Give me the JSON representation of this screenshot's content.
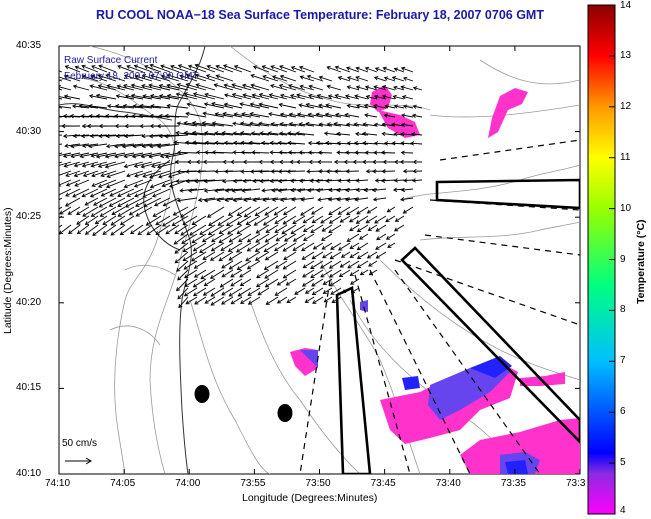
{
  "header": {
    "title": "RU COOL  NOAA−18  Sea Surface Temperature:  February 18, 2007 0706 GMT"
  },
  "legend": {
    "line1": "Raw Surface Current",
    "line2": "February 18, 2007 07:00 GMT",
    "scale_label": "50 cm/s"
  },
  "axes": {
    "xlabel": "Longitude (Degrees:Minutes)",
    "ylabel": "Latitude (Degrees:Minutes)",
    "x_ticks": [
      "74:10",
      "74:05",
      "74:00",
      "73:55",
      "73:50",
      "73:45",
      "73:40",
      "73:35",
      "73:3"
    ],
    "y_ticks": [
      "40:35",
      "40:30",
      "40:25",
      "40:20",
      "40:15",
      "40:10"
    ]
  },
  "colorbar": {
    "label": "Temperature (°C)",
    "ticks": [
      "14",
      "13",
      "12",
      "11",
      "10",
      "9",
      "8",
      "7",
      "6",
      "5",
      "4"
    ],
    "range": [
      4,
      14
    ]
  },
  "colors": {
    "title": "#1a1aa6",
    "sst_low": "#ff33cc",
    "sst_mid": "#6644ee",
    "sst_blue": "#2222ff"
  }
}
